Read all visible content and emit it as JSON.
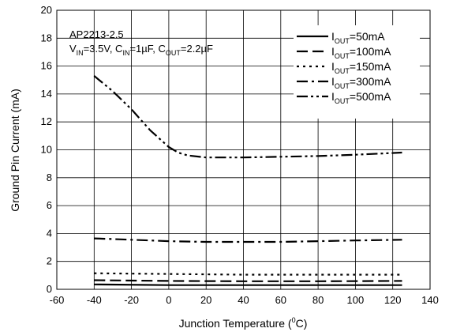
{
  "chart_data": {
    "type": "line",
    "xlabel_main": "Junction Temperature (",
    "xlabel_sup": "0",
    "xlabel_unit": "C)",
    "ylabel": "Ground Pin Current (mA)",
    "xlim": [
      -60,
      140
    ],
    "ylim": [
      0,
      20
    ],
    "xticks": [
      -60,
      -40,
      -20,
      0,
      20,
      40,
      60,
      80,
      100,
      120,
      140
    ],
    "yticks": [
      0,
      2,
      4,
      6,
      8,
      10,
      12,
      14,
      16,
      18,
      20
    ],
    "grid": true,
    "legend_position": "top-right",
    "annotation": {
      "line1": "AP2213-2.5",
      "v_prefix": "V",
      "v_sub": "IN",
      "v_val": "=3.5V, C",
      "cin_sub": "IN",
      "cin_val": "=1µF, C",
      "cout_sub": "OUT",
      "cout_val": "=2.2µF"
    },
    "legend_prefix": "I",
    "legend_sub": "OUT",
    "series": [
      {
        "name": "=50mA",
        "dash": "solid",
        "x": [
          -40,
          0,
          40,
          80,
          125
        ],
        "y": [
          0.35,
          0.3,
          0.3,
          0.3,
          0.3
        ]
      },
      {
        "name": "=100mA",
        "dash": "dash",
        "x": [
          -40,
          0,
          40,
          80,
          125
        ],
        "y": [
          0.65,
          0.6,
          0.58,
          0.58,
          0.6
        ]
      },
      {
        "name": "=150mA",
        "dash": "dot",
        "x": [
          -40,
          0,
          40,
          80,
          125
        ],
        "y": [
          1.15,
          1.1,
          1.05,
          1.05,
          1.05
        ]
      },
      {
        "name": "=300mA",
        "dash": "dashdot",
        "x": [
          -40,
          -20,
          0,
          20,
          40,
          60,
          80,
          100,
          125
        ],
        "y": [
          3.65,
          3.55,
          3.45,
          3.4,
          3.4,
          3.4,
          3.45,
          3.5,
          3.55
        ]
      },
      {
        "name": "=500mA",
        "dash": "dashdotdot",
        "x": [
          -40,
          -30,
          -20,
          -10,
          0,
          5,
          10,
          20,
          40,
          60,
          80,
          100,
          125
        ],
        "y": [
          15.3,
          14.2,
          12.9,
          11.4,
          10.2,
          9.8,
          9.6,
          9.45,
          9.45,
          9.5,
          9.55,
          9.65,
          9.8
        ]
      }
    ]
  }
}
